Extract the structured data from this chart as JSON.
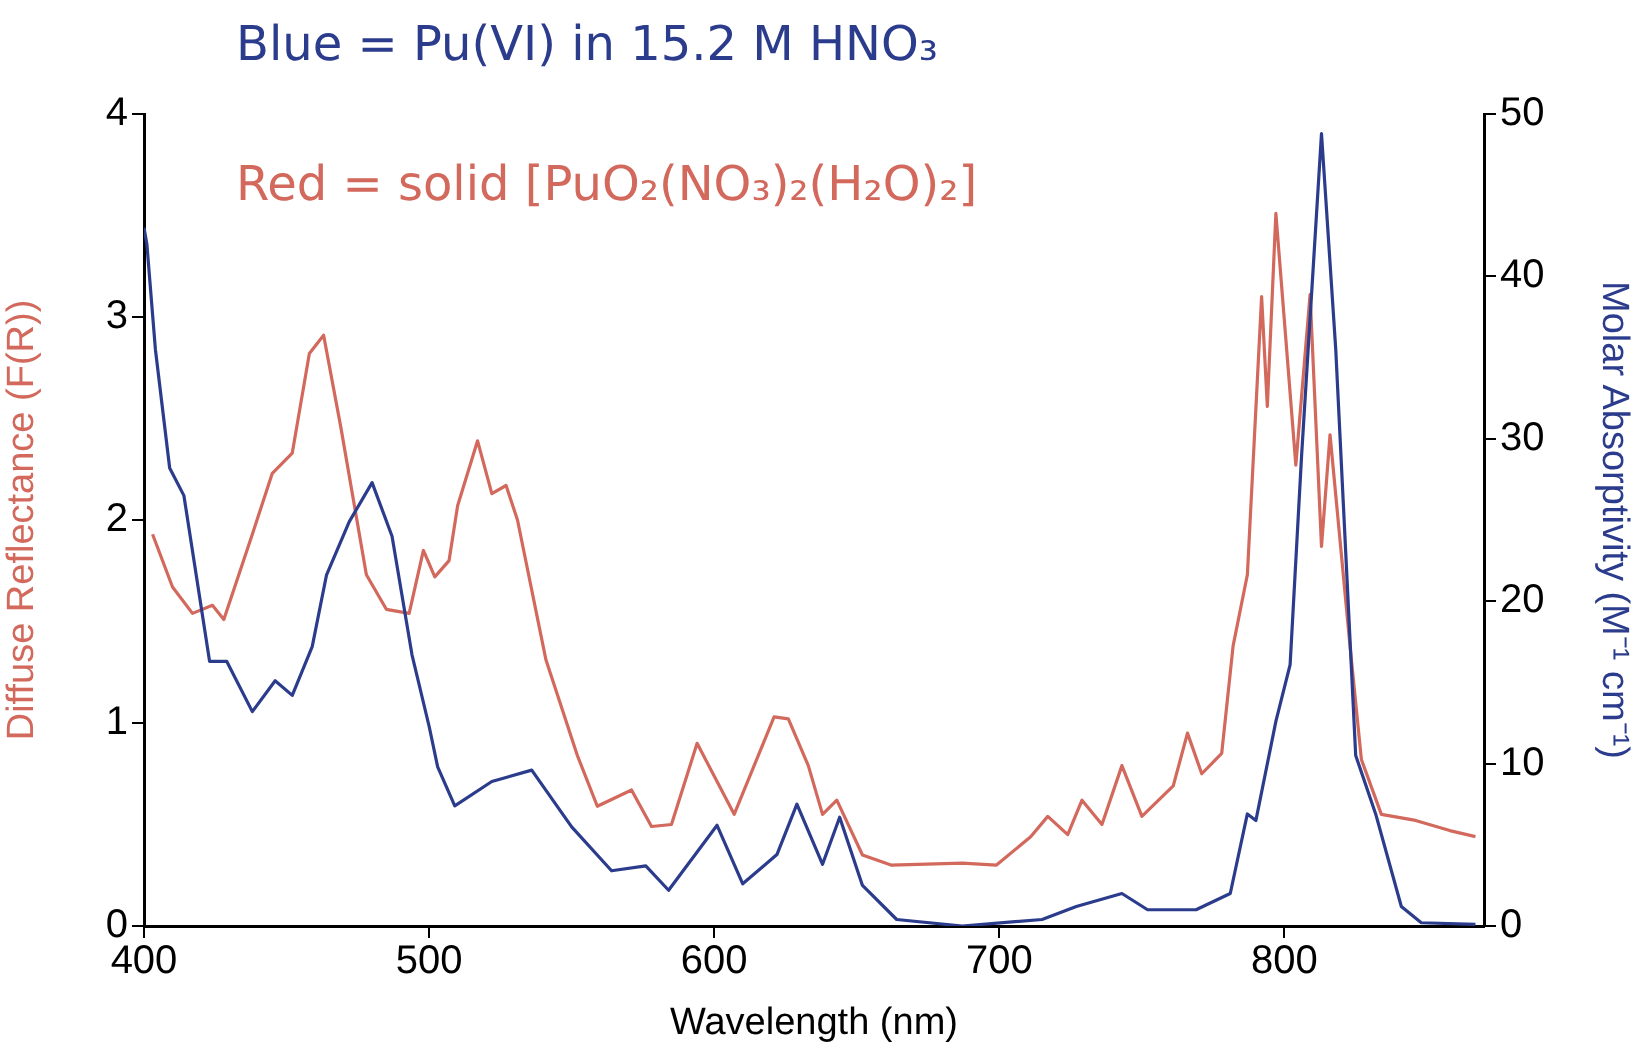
{
  "chart_data": {
    "type": "line",
    "xlabel": "Wavelength (nm)",
    "ylabel": "Diffuse Reflectance (F(R))",
    "y2label": "Molar Absorptivity (M⁻¹ cm⁻¹)",
    "xlim": [
      400,
      870
    ],
    "xticks": [
      400,
      500,
      600,
      700,
      800
    ],
    "ylim": [
      0,
      4
    ],
    "yticks": [
      0,
      1,
      2,
      3,
      4
    ],
    "y2lim": [
      0,
      50
    ],
    "y2ticks": [
      0,
      10,
      20,
      30,
      40,
      50
    ],
    "grid": false,
    "legend": "top left",
    "marker": "none",
    "line_style": "solid",
    "series": [
      {
        "name": "Blue = Pu(VI) in 15.2 M HNO₃",
        "color": "#2b3c8c",
        "axis": "y2",
        "x": [
          400,
          401,
          404,
          409,
          414,
          423,
          429,
          438,
          446,
          452,
          459,
          464,
          472,
          480,
          487,
          494,
          500,
          503,
          509,
          522,
          536,
          550,
          564,
          576,
          584,
          601,
          610,
          622,
          629,
          638,
          644,
          652,
          664,
          687,
          715,
          727,
          743,
          752,
          769,
          781,
          787,
          790,
          797,
          802,
          806,
          813,
          818,
          825,
          832,
          841,
          848,
          867
        ],
        "values": [
          43,
          42.0,
          35.5,
          28.2,
          26.5,
          16.3,
          16.3,
          13.2,
          15.1,
          14.2,
          17.2,
          21.6,
          24.9,
          27.3,
          24.0,
          16.7,
          12.3,
          9.8,
          7.4,
          8.9,
          9.6,
          6.1,
          3.4,
          3.7,
          2.2,
          6.2,
          2.6,
          4.4,
          7.5,
          3.8,
          6.7,
          2.5,
          0.4,
          0,
          0.4,
          1.2,
          2.0,
          1.0,
          1.0,
          2.0,
          6.9,
          6.5,
          12.6,
          16.1,
          28.9,
          48.8,
          35.5,
          10.5,
          6.9,
          1.2,
          0.2,
          0.1
        ]
      },
      {
        "name": "Red = solid [PuO₂(NO₃)₂(H₂O)₂]",
        "color": "#d2695c",
        "x": [
          403,
          410,
          417,
          424,
          428,
          438,
          445,
          452,
          458,
          463,
          469,
          478,
          485,
          493,
          498,
          502,
          507,
          510,
          517,
          522,
          527,
          531,
          541,
          552,
          559,
          571,
          578,
          585,
          594,
          607,
          621,
          626,
          633,
          638,
          643,
          652,
          662,
          687,
          699,
          711,
          717,
          724,
          729,
          736,
          743,
          750,
          761,
          766,
          771,
          778,
          782,
          787,
          792,
          794,
          797,
          804,
          809,
          813,
          816,
          823,
          827,
          834,
          846,
          858,
          867
        ],
        "values": [
          1.93,
          1.67,
          1.54,
          1.58,
          1.51,
          1.93,
          2.23,
          2.33,
          2.82,
          2.91,
          2.46,
          1.73,
          1.56,
          1.54,
          1.85,
          1.72,
          1.8,
          2.07,
          2.39,
          2.13,
          2.17,
          2.0,
          1.31,
          0.84,
          0.59,
          0.67,
          0.49,
          0.5,
          0.9,
          0.55,
          1.03,
          1.02,
          0.79,
          0.55,
          0.62,
          0.35,
          0.3,
          0.31,
          0.3,
          0.44,
          0.54,
          0.45,
          0.62,
          0.5,
          0.79,
          0.54,
          0.69,
          0.95,
          0.75,
          0.85,
          1.38,
          1.73,
          3.1,
          2.56,
          3.51,
          2.27,
          3.11,
          1.87,
          2.42,
          1.38,
          0.82,
          0.55,
          0.52,
          0.47,
          0.44
        ]
      }
    ]
  }
}
